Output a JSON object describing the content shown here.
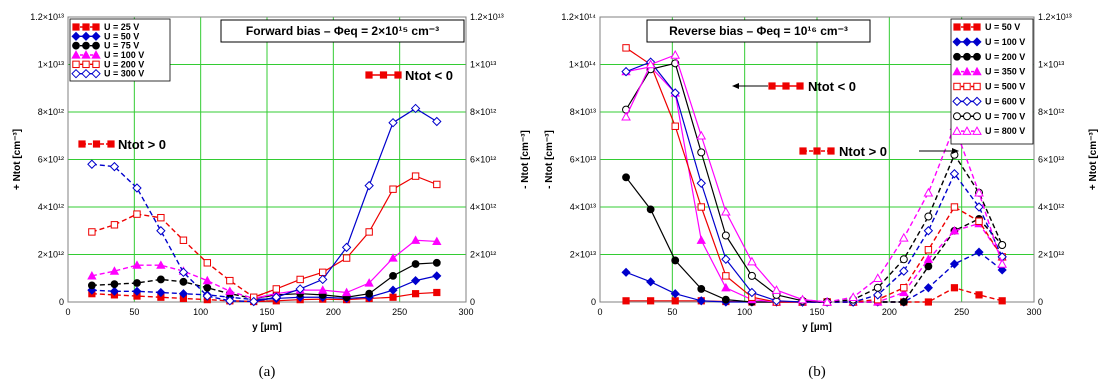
{
  "chart_data": [
    {
      "type": "line",
      "caption": "(a)",
      "title_box": "Forward bias – Φeq = 2×10¹⁵ cm⁻³",
      "xlabel": "y [µm]",
      "ylabel_left": "+ Ntot [cm⁻³]",
      "ylabel_right": "- Ntot [cm⁻³]",
      "xlim": [
        0,
        300
      ],
      "x_ticks": [
        "0",
        "50",
        "100",
        "150",
        "200",
        "250",
        "300"
      ],
      "ylim": [
        0,
        12
      ],
      "y_ticks": [
        "0",
        "2×10¹²",
        "4×10¹²",
        "6×10¹²",
        "8×10¹²",
        "1×10¹³",
        "1.2×10¹³"
      ],
      "y_unit_scale": "×10¹² cm⁻³",
      "grid": true,
      "legend_position": "top-left",
      "annotations": [
        {
          "text": "Ntot < 0",
          "style": "solid"
        },
        {
          "text": "Ntot > 0",
          "style": "dashed"
        }
      ],
      "series": [
        {
          "name": "U = 25 V",
          "color": "#ee0000",
          "marker": "filled-square",
          "x": [
            18,
            35,
            52,
            70,
            87,
            105,
            122,
            140,
            157,
            175,
            192,
            210,
            227,
            245,
            262,
            278
          ],
          "y": [
            0.35,
            0.3,
            0.25,
            0.2,
            0.15,
            0.1,
            0.05,
            0.02,
            0.05,
            0.1,
            0.12,
            0.1,
            0.15,
            0.2,
            0.35,
            0.4
          ]
        },
        {
          "name": "U = 50 V",
          "color": "#0000cc",
          "marker": "filled-diamond",
          "x": [
            18,
            35,
            52,
            70,
            87,
            105,
            122,
            140,
            157,
            175,
            192,
            210,
            227,
            245,
            262,
            278
          ],
          "y": [
            0.5,
            0.45,
            0.45,
            0.4,
            0.35,
            0.3,
            0.2,
            0.1,
            0.15,
            0.2,
            0.2,
            0.15,
            0.2,
            0.5,
            0.9,
            1.1
          ]
        },
        {
          "name": "U = 75 V",
          "color": "#000000",
          "marker": "filled-circle",
          "x": [
            18,
            35,
            52,
            70,
            87,
            105,
            122,
            140,
            157,
            175,
            192,
            210,
            227,
            245,
            262,
            278
          ],
          "y": [
            0.7,
            0.75,
            0.8,
            0.95,
            0.85,
            0.6,
            0.35,
            0.15,
            0.3,
            0.35,
            0.3,
            0.2,
            0.35,
            1.1,
            1.6,
            1.65
          ]
        },
        {
          "name": "U = 100 V",
          "color": "#ff00ff",
          "marker": "filled-triangle",
          "x": [
            18,
            35,
            52,
            70,
            87,
            105,
            122,
            140,
            157,
            175,
            192,
            210,
            227,
            245,
            262,
            278
          ],
          "y": [
            1.1,
            1.3,
            1.55,
            1.55,
            1.3,
            0.9,
            0.45,
            0.15,
            0.35,
            0.5,
            0.5,
            0.4,
            0.8,
            1.85,
            2.6,
            2.55
          ]
        },
        {
          "name": "U = 200 V",
          "color": "#ee0000",
          "marker": "open-square",
          "x": [
            18,
            35,
            52,
            70,
            87,
            105,
            122,
            140,
            157,
            175,
            192,
            210,
            227,
            245,
            262,
            278
          ],
          "y": [
            2.95,
            3.25,
            3.7,
            3.55,
            2.6,
            1.65,
            0.9,
            0.2,
            0.55,
            0.95,
            1.25,
            1.85,
            2.95,
            4.75,
            5.3,
            4.95
          ]
        },
        {
          "name": "U = 300 V",
          "color": "#0000cc",
          "marker": "open-diamond",
          "x": [
            18,
            35,
            52,
            70,
            87,
            105,
            122,
            140,
            157,
            175,
            192,
            210,
            227,
            245,
            262,
            278
          ],
          "y": [
            5.8,
            5.7,
            4.8,
            3.0,
            1.25,
            0.25,
            0.05,
            0.02,
            0.2,
            0.55,
            0.95,
            2.3,
            4.9,
            7.55,
            8.15,
            7.6
          ]
        }
      ]
    },
    {
      "type": "line",
      "caption": "(b)",
      "title_box": "Reverse bias – Φeq = 10¹⁶ cm⁻³",
      "xlabel": "y [µm]",
      "ylabel_left": "- Ntot [cm⁻³]",
      "ylabel_right": "+ Ntot [cm⁻³]",
      "xlim": [
        0,
        300
      ],
      "x_ticks": [
        "0",
        "50",
        "100",
        "150",
        "200",
        "250",
        "300"
      ],
      "ylim": [
        0,
        12
      ],
      "y_ticks": [
        "0",
        "2×10¹³",
        "4×10¹³",
        "6×10¹³",
        "8×10¹³",
        "1×10¹⁴",
        "1.2×10¹⁴"
      ],
      "y2_ticks": [
        "0",
        "2×10¹²",
        "4×10¹²",
        "6×10¹²",
        "8×10¹²",
        "1×10¹³",
        "1.2×10¹³"
      ],
      "y_unit_scale": "×10¹³ cm⁻³ (left), ×10¹² cm⁻³ (right)",
      "grid": true,
      "legend_position": "top-right",
      "annotations": [
        {
          "text": "Ntot < 0",
          "style": "solid"
        },
        {
          "text": "Ntot > 0",
          "style": "dashed"
        }
      ],
      "series": [
        {
          "name": "U = 50 V",
          "color": "#ee0000",
          "marker": "filled-square",
          "x": [
            18,
            35,
            52,
            70,
            87,
            105,
            122,
            140,
            157,
            175,
            192,
            210,
            227,
            245,
            262,
            278
          ],
          "y": [
            0.05,
            0.05,
            0.05,
            0.05,
            0.02,
            0.0,
            0.0,
            0.0,
            0.0,
            0.0,
            0.0,
            0.0,
            0.0,
            0.6,
            0.3,
            0.05
          ]
        },
        {
          "name": "U = 100 V",
          "color": "#0000cc",
          "marker": "filled-diamond",
          "x": [
            18,
            35,
            52,
            70,
            87,
            105,
            122,
            140,
            157,
            175,
            192,
            210,
            227,
            245,
            262,
            278
          ],
          "y": [
            1.25,
            0.85,
            0.35,
            0.05,
            0.0,
            0.0,
            0.0,
            0.0,
            0.0,
            0.0,
            0.0,
            0.0,
            0.6,
            1.6,
            2.1,
            1.35
          ]
        },
        {
          "name": "U = 200 V",
          "color": "#000000",
          "marker": "filled-circle",
          "x": [
            18,
            35,
            52,
            70,
            87,
            105,
            122,
            140,
            157,
            175,
            192,
            210,
            227,
            245,
            262,
            278
          ],
          "y": [
            5.25,
            3.9,
            1.75,
            0.55,
            0.1,
            0.0,
            0.0,
            0.0,
            0.0,
            0.0,
            0.0,
            0.0,
            1.5,
            3.0,
            3.5,
            2.4
          ]
        },
        {
          "name": "U = 350 V",
          "color": "#ff00ff",
          "marker": "filled-triangle",
          "x": [
            18,
            35,
            52,
            70,
            87,
            105,
            122,
            140,
            157,
            175,
            192,
            210,
            227,
            245,
            262,
            278
          ],
          "y": [
            9.7,
            9.9,
            8.8,
            2.6,
            0.6,
            0.1,
            0.0,
            0.0,
            0.0,
            0.0,
            0.0,
            0.4,
            1.8,
            3.0,
            3.3,
            1.9
          ]
        },
        {
          "name": "U = 500 V",
          "color": "#ee0000",
          "marker": "open-square",
          "x": [
            18,
            35,
            52,
            70,
            87,
            105,
            122,
            140,
            157,
            175,
            192,
            210,
            227,
            245,
            262,
            278
          ],
          "y": [
            10.7,
            10.0,
            7.4,
            4.0,
            1.1,
            0.2,
            0.0,
            0.0,
            0.0,
            0.0,
            0.1,
            0.6,
            2.2,
            4.0,
            3.4,
            1.9
          ]
        },
        {
          "name": "U = 600 V",
          "color": "#0000cc",
          "marker": "open-diamond",
          "x": [
            18,
            35,
            52,
            70,
            87,
            105,
            122,
            140,
            157,
            175,
            192,
            210,
            227,
            245,
            262,
            278
          ],
          "y": [
            9.7,
            10.1,
            8.8,
            5.0,
            1.8,
            0.4,
            0.05,
            0.0,
            0.0,
            0.0,
            0.3,
            1.3,
            3.0,
            5.4,
            4.0,
            1.9
          ]
        },
        {
          "name": "U = 700 V",
          "color": "#000000",
          "marker": "open-circle",
          "x": [
            18,
            35,
            52,
            70,
            87,
            105,
            122,
            140,
            157,
            175,
            192,
            210,
            227,
            245,
            262,
            278
          ],
          "y": [
            8.1,
            9.8,
            10.05,
            6.3,
            2.8,
            1.1,
            0.3,
            0.05,
            0.0,
            0.1,
            0.6,
            1.8,
            3.6,
            6.2,
            4.6,
            2.4
          ]
        },
        {
          "name": "U = 800 V",
          "color": "#ff00ff",
          "marker": "open-triangle",
          "x": [
            18,
            35,
            52,
            70,
            87,
            105,
            122,
            140,
            157,
            175,
            192,
            210,
            227,
            245,
            262,
            278
          ],
          "y": [
            7.8,
            10.0,
            10.4,
            7.0,
            3.8,
            1.7,
            0.5,
            0.1,
            0.0,
            0.2,
            1.0,
            2.7,
            4.6,
            7.4,
            4.6,
            1.6
          ]
        }
      ]
    }
  ]
}
